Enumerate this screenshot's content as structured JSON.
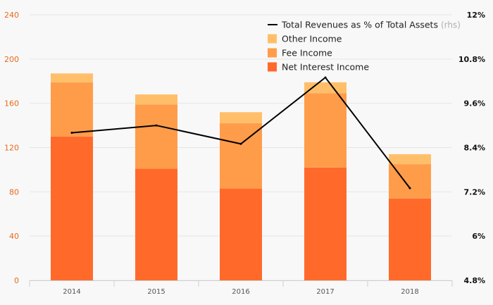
{
  "chart_data": {
    "type": "bar",
    "stacked": true,
    "categories": [
      "2014",
      "2015",
      "2016",
      "2017",
      "2018"
    ],
    "series": [
      {
        "name": "Net Interest Income",
        "values": [
          130,
          101,
          83,
          102,
          74
        ],
        "color": "#ff6a2b"
      },
      {
        "name": "Fee Income",
        "values": [
          49,
          58,
          59,
          67,
          31
        ],
        "color": "#ff9c4a"
      },
      {
        "name": "Other Income",
        "values": [
          8,
          9,
          10,
          10,
          9
        ],
        "color": "#ffbf6a"
      }
    ],
    "line_series": {
      "name": "Total Revenues as % of Total Assets",
      "suffix": "(rhs)",
      "axis": "right",
      "values": [
        8.8,
        9.0,
        8.5,
        10.3,
        7.3
      ],
      "color": "#000000"
    },
    "ylim": [
      0,
      240
    ],
    "yticks": [
      "0",
      "40",
      "80",
      "120",
      "160",
      "200",
      "240"
    ],
    "y2lim": [
      4.8,
      12
    ],
    "y2ticks": [
      "4.8%",
      "6%",
      "7.2%",
      "8.4%",
      "9.6%",
      "10.8%",
      "12%"
    ],
    "grid": true,
    "legend_position": "top-right"
  }
}
